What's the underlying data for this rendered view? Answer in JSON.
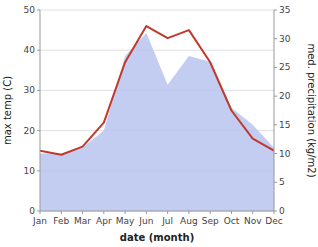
{
  "chart_data": {
    "type": "line",
    "categories": [
      "Jan",
      "Feb",
      "Mar",
      "Apr",
      "May",
      "Jun",
      "Jul",
      "Aug",
      "Sep",
      "Oct",
      "Nov",
      "Dec"
    ],
    "series": [
      {
        "type": "area",
        "axis": "y2",
        "color": "#b8c4f0",
        "values": [
          10,
          10,
          11,
          14,
          27,
          31,
          22,
          27,
          26,
          18,
          15,
          11
        ]
      },
      {
        "type": "line",
        "color": "#c0392b",
        "values": [
          15,
          14,
          16,
          22,
          37,
          46,
          43,
          45,
          37,
          25,
          18,
          15
        ]
      }
    ],
    "xlabel": "date (month)",
    "ylabel": "max temp (C)",
    "y2label": "med. precipitation (kg/m2)",
    "ylim": [
      0,
      50
    ],
    "yticks": [
      0,
      10,
      20,
      30,
      40,
      50
    ],
    "y2lim": [
      0,
      35
    ],
    "y2ticks": [
      0,
      5,
      10,
      15,
      20,
      25,
      30,
      35
    ],
    "grid": true
  }
}
